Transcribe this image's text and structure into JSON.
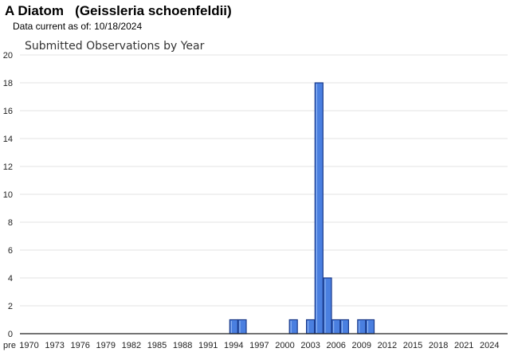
{
  "header": {
    "species_common": "A Diatom",
    "species_scientific": "(Geissleria schoenfeldii)",
    "data_current_label": "Data current as of:",
    "data_current_date": "10/18/2024"
  },
  "chart_data": {
    "type": "bar",
    "title": "Submitted Observations by Year",
    "xlabel": "",
    "ylabel": "",
    "ylim": [
      0,
      20
    ],
    "y_ticks": [
      0,
      2,
      4,
      6,
      8,
      10,
      12,
      14,
      16,
      18,
      20
    ],
    "x_tick_labels": [
      "pre",
      "1970",
      "1973",
      "1976",
      "1979",
      "1982",
      "1985",
      "1988",
      "1991",
      "1994",
      "1997",
      "2000",
      "2003",
      "2006",
      "2009",
      "2012",
      "2015",
      "2018",
      "2021",
      "2024"
    ],
    "grid": true,
    "legend": "none",
    "bar_color": "#4a7fe0",
    "bar_edge_color": "#1a3a8a",
    "categories": [
      "1994",
      "1995",
      "2001",
      "2003",
      "2004",
      "2005",
      "2006",
      "2007",
      "2009",
      "2010"
    ],
    "values": [
      1,
      1,
      1,
      1,
      18,
      4,
      1,
      1,
      1,
      1
    ]
  }
}
